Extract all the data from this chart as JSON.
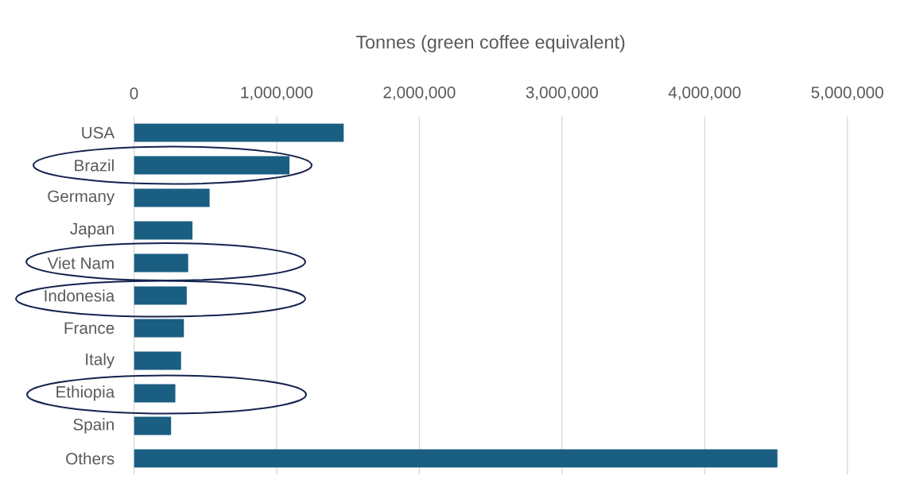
{
  "chart_data": {
    "type": "bar",
    "orientation": "horizontal",
    "xlabel": "Tonnes (green coffee equivalent)",
    "categories": [
      "USA",
      "Brazil",
      "Germany",
      "Japan",
      "Viet Nam",
      "Indonesia",
      "France",
      "Italy",
      "Ethiopia",
      "Spain",
      "Others"
    ],
    "values": [
      1470000,
      1090000,
      530000,
      410000,
      380000,
      370000,
      350000,
      330000,
      290000,
      260000,
      4510000
    ],
    "color": "#1a5e82",
    "xlim": [
      0,
      5000000
    ],
    "xticks": [
      0,
      {
        "value": 1000000,
        "label": "1,000,000"
      },
      {
        "value": 2000000,
        "label": "2,000,000"
      },
      {
        "value": 3000000,
        "label": "3,000,000"
      },
      {
        "value": 4000000,
        "label": "4,000,000"
      },
      {
        "value": 5000000,
        "label": "5,000,000"
      }
    ],
    "grid": "x"
  }
}
